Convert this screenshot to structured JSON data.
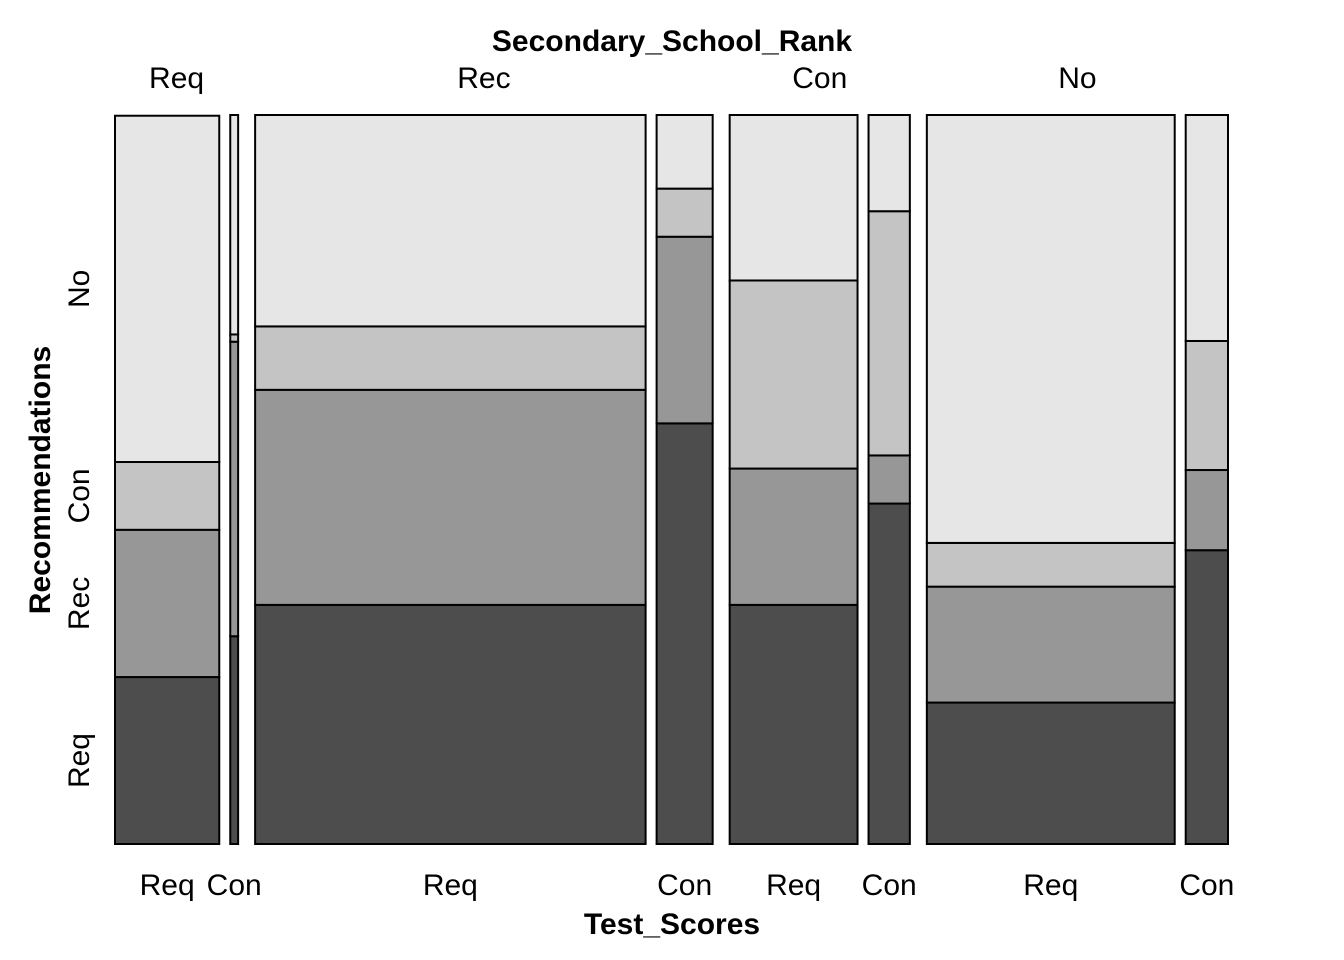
{
  "chart_data": {
    "type": "mosaic",
    "top_title": "Secondary_School_Rank",
    "xlabel": "Test_Scores",
    "ylabel": "Recommendations",
    "top_categories": [
      "Req",
      "Rec",
      "Con",
      "No"
    ],
    "y_levels_bottom_to_top": [
      "Req",
      "Rec",
      "Con",
      "No"
    ],
    "cells": [
      {
        "rank": "Req",
        "test": "Req",
        "share": 0.106,
        "fractions": [
          0.229,
          0.202,
          0.093,
          0.475
        ]
      },
      {
        "rank": "Req",
        "test": "Con",
        "share": 0.008,
        "fractions": [
          0.285,
          0.404,
          0.01,
          0.301
        ]
      },
      {
        "rank": "Rec",
        "test": "Req",
        "share": 0.397,
        "fractions": [
          0.328,
          0.295,
          0.087,
          0.29
        ]
      },
      {
        "rank": "Rec",
        "test": "Con",
        "share": 0.057,
        "fractions": [
          0.577,
          0.256,
          0.066,
          0.101
        ]
      },
      {
        "rank": "Con",
        "test": "Req",
        "share": 0.13,
        "fractions": [
          0.328,
          0.187,
          0.258,
          0.227
        ]
      },
      {
        "rank": "Con",
        "test": "Con",
        "share": 0.042,
        "fractions": [
          0.467,
          0.066,
          0.335,
          0.132
        ]
      },
      {
        "rank": "No",
        "test": "Req",
        "share": 0.252,
        "fractions": [
          0.194,
          0.159,
          0.06,
          0.587
        ]
      },
      {
        "rank": "No",
        "test": "Con",
        "share": 0.043,
        "fractions": [
          0.403,
          0.11,
          0.177,
          0.31
        ]
      }
    ],
    "colors": {
      "Req": "#4d4d4d",
      "Rec": "#979797",
      "Con": "#c4c4c4",
      "No": "#e6e6e6"
    }
  }
}
